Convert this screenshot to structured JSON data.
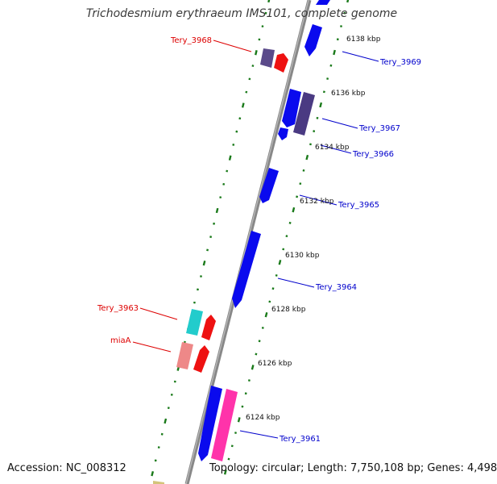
{
  "header": {
    "title": "Trichodesmium erythraeum IMS101, complete genome"
  },
  "footer": {
    "accession_label": "Accession:",
    "accession_value": "NC_008312",
    "topology_label": "Topology:",
    "topology_value": "circular",
    "length_label": "Length:",
    "length_value": "7,750,108 bp",
    "genes_label": "Genes:",
    "genes_value": "4,498"
  },
  "map": {
    "backbone_color": "#888888",
    "tick_color": "#1a7a1a",
    "ticks": [
      {
        "id": "t6138",
        "label": "6138 kbp"
      },
      {
        "id": "t6136",
        "label": "6136 kbp"
      },
      {
        "id": "t6134",
        "label": "6134 kbp"
      },
      {
        "id": "t6132",
        "label": "6132 kbp"
      },
      {
        "id": "t6130",
        "label": "6130 kbp"
      },
      {
        "id": "t6128",
        "label": "6128 kbp"
      },
      {
        "id": "t6126",
        "label": "6126 kbp"
      },
      {
        "id": "t6124",
        "label": "6124 kbp"
      }
    ],
    "genes": [
      {
        "id": "tery-3968",
        "label": "Tery_3968",
        "strand": "reverse",
        "color": "#5a4a8a",
        "label_color": "#dd0000"
      },
      {
        "id": "tery-3969",
        "label": "Tery_3969",
        "strand": "forward",
        "color": "#0a0aee",
        "label_color": "#0000cc"
      },
      {
        "id": "tery-3967",
        "label": "Tery_3967",
        "strand": "forward",
        "color": "#4a3a82",
        "label_color": "#0000cc"
      },
      {
        "id": "tery-3966",
        "label": "Tery_3966",
        "strand": "forward",
        "color": "#0a0aee",
        "label_color": "#0000cc"
      },
      {
        "id": "tery-3965",
        "label": "Tery_3965",
        "strand": "forward",
        "color": "#0a0aee",
        "label_color": "#0000cc"
      },
      {
        "id": "tery-3964",
        "label": "Tery_3964",
        "strand": "forward",
        "color": "#0a0aee",
        "label_color": "#0000cc"
      },
      {
        "id": "tery-3963",
        "label": "Tery_3963",
        "strand": "reverse",
        "color": "#22cccc",
        "label_color": "#dd0000"
      },
      {
        "id": "miaa",
        "label": "miaA",
        "strand": "reverse",
        "color": "#ee8888",
        "label_color": "#dd0000"
      },
      {
        "id": "tery-3961",
        "label": "Tery_3961",
        "strand": "forward",
        "color": "#0a0aee",
        "label_color": "#0000cc"
      }
    ],
    "orf_color": "#ee1111",
    "pink_gene_color": "#ff33aa"
  }
}
